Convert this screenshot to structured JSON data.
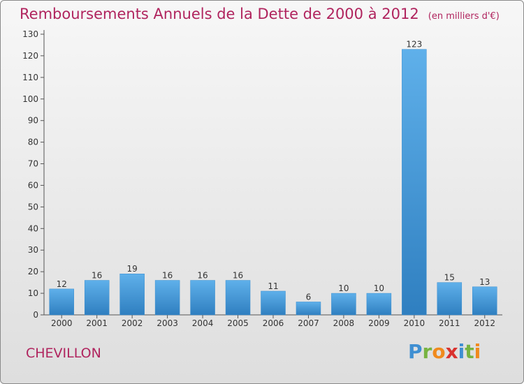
{
  "chart_data": {
    "type": "bar",
    "title": "Remboursements Annuels de la Dette de 2000 à 2012",
    "unit_note": "(en milliers d'€)",
    "categories": [
      "2000",
      "2001",
      "2002",
      "2003",
      "2004",
      "2005",
      "2006",
      "2007",
      "2008",
      "2009",
      "2010",
      "2011",
      "2012"
    ],
    "values": [
      12,
      16,
      19,
      16,
      16,
      16,
      11,
      6,
      10,
      10,
      123,
      15,
      13
    ],
    "ylim": [
      0,
      130
    ],
    "yticks": [
      0,
      10,
      20,
      30,
      40,
      50,
      60,
      70,
      80,
      90,
      100,
      110,
      120,
      130
    ],
    "grid": false,
    "colors": {
      "bar_top": "#5fb0ea",
      "bar_bottom": "#2f7fc0",
      "title": "#b0245e"
    }
  },
  "commune": "CHEVILLON",
  "logo": {
    "letters": [
      "P",
      "r",
      "o",
      "x",
      "i",
      "t",
      "i"
    ]
  }
}
